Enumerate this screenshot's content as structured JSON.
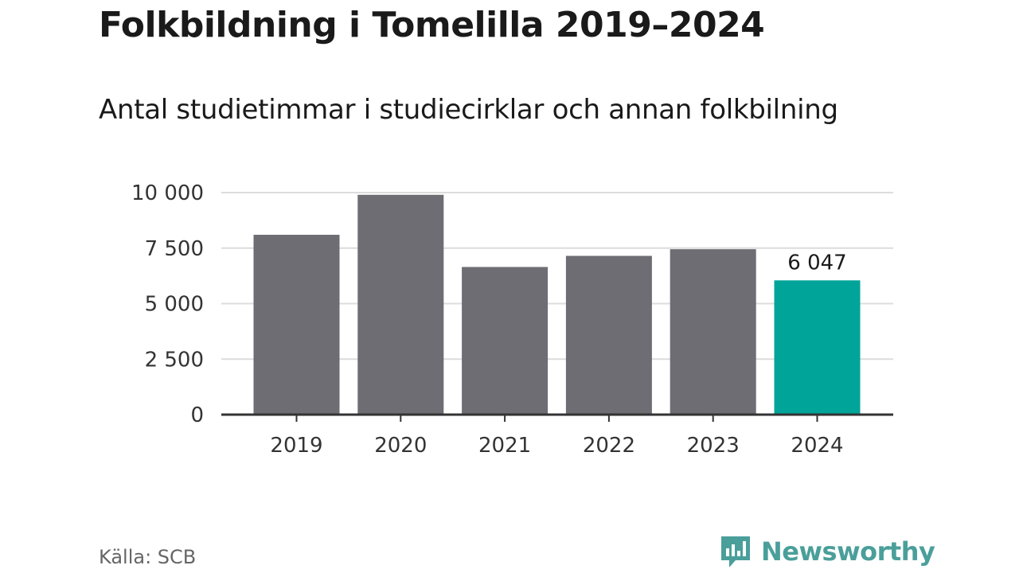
{
  "chart_data": {
    "type": "bar",
    "title": "Folkbildning i Tomelilla 2019–2024",
    "subtitle": "Antal studietimmar i studiecirklar och annan folkbilning",
    "categories": [
      "2019",
      "2020",
      "2021",
      "2022",
      "2023",
      "2024"
    ],
    "values": [
      8100,
      9900,
      6650,
      7150,
      7450,
      6047
    ],
    "y_ticks": [
      0,
      2500,
      5000,
      7500,
      10000
    ],
    "y_tick_labels": [
      "0",
      "2 500",
      "5 000",
      "7 500",
      "10 000"
    ],
    "ylim": [
      0,
      10000
    ],
    "data_labels": [
      {
        "category": "2024",
        "value": 6047,
        "text": "6 047"
      }
    ],
    "highlight_category": "2024",
    "grid": true,
    "colors": {
      "bar": "#6e6d73",
      "highlight": "#00a499",
      "grid": "#dcdcdc",
      "axis": "#333333"
    }
  },
  "footer": {
    "source": "Källa: SCB",
    "brand": "Newsworthy",
    "brand_icon": "newsworthy-logo-icon",
    "brand_color": "#4a9f9a"
  }
}
